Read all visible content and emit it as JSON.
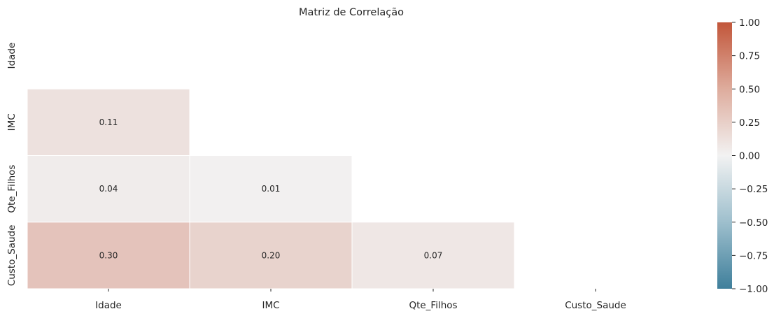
{
  "chart_data": {
    "type": "heatmap",
    "title": "Matriz de Correlação",
    "variables": [
      "Idade",
      "IMC",
      "Qte_Filhos",
      "Custo_Saude"
    ],
    "mask": "upper-triangle-including-diagonal",
    "cells": [
      {
        "row": "IMC",
        "col": "Idade",
        "value": 0.11,
        "label": "0.11"
      },
      {
        "row": "Qte_Filhos",
        "col": "Idade",
        "value": 0.04,
        "label": "0.04"
      },
      {
        "row": "Qte_Filhos",
        "col": "IMC",
        "value": 0.01,
        "label": "0.01"
      },
      {
        "row": "Custo_Saude",
        "col": "Idade",
        "value": 0.3,
        "label": "0.30"
      },
      {
        "row": "Custo_Saude",
        "col": "IMC",
        "value": 0.2,
        "label": "0.20"
      },
      {
        "row": "Custo_Saude",
        "col": "Qte_Filhos",
        "value": 0.07,
        "label": "0.07"
      }
    ],
    "colorbar": {
      "vmin": -1.0,
      "vmax": 1.0,
      "ticks": [
        "1.00",
        "0.75",
        "0.50",
        "0.25",
        "0.00",
        "−0.25",
        "−0.50",
        "−0.75",
        "−1.00"
      ],
      "tick_values": [
        1.0,
        0.75,
        0.5,
        0.25,
        0.0,
        -0.25,
        -0.5,
        -0.75,
        -1.0
      ],
      "colors": {
        "negative": "#3f7f9b",
        "neutral": "#f2f2f2",
        "positive": "#c2563a"
      }
    },
    "grid": false,
    "legend": "colorbar-right"
  }
}
